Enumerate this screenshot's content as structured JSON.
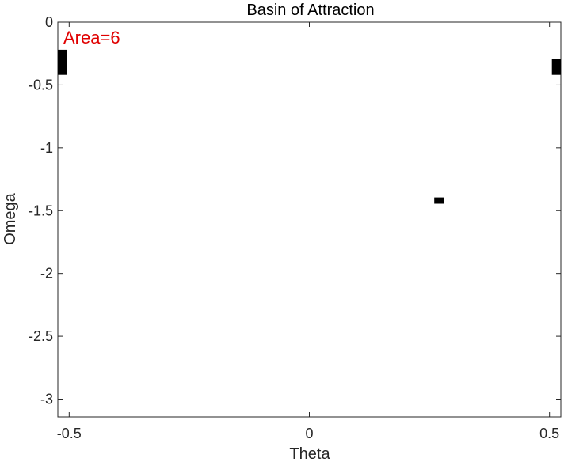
{
  "chart_data": {
    "type": "heatmap",
    "title": "Basin of Attraction",
    "xlabel": "Theta",
    "ylabel": "Omega",
    "xlim": [
      -0.5236,
      0.5236
    ],
    "ylim": [
      -3.1416,
      0
    ],
    "xticks": [
      -0.5,
      0,
      0.5
    ],
    "xtick_labels": [
      "-0.5",
      "0",
      "0.5"
    ],
    "yticks": [
      0,
      -0.5,
      -1,
      -1.5,
      -2,
      -2.5,
      -3
    ],
    "ytick_labels": [
      "0",
      "-0.5",
      "-1",
      "-1.5",
      "-2",
      "-2.5",
      "-3"
    ],
    "grid": false,
    "annotation": {
      "text": "Area=6",
      "color": "#e00000"
    },
    "basin_cells": [
      {
        "x": [
          -0.5236,
          -0.505
        ],
        "y": [
          -0.42,
          -0.22
        ]
      },
      {
        "x": [
          0.5236,
          0.505
        ],
        "y": [
          -0.42,
          -0.29
        ]
      },
      {
        "x": [
          0.26,
          0.281
        ],
        "y": [
          -1.445,
          -1.395
        ]
      }
    ],
    "cell_color": "#000000"
  }
}
